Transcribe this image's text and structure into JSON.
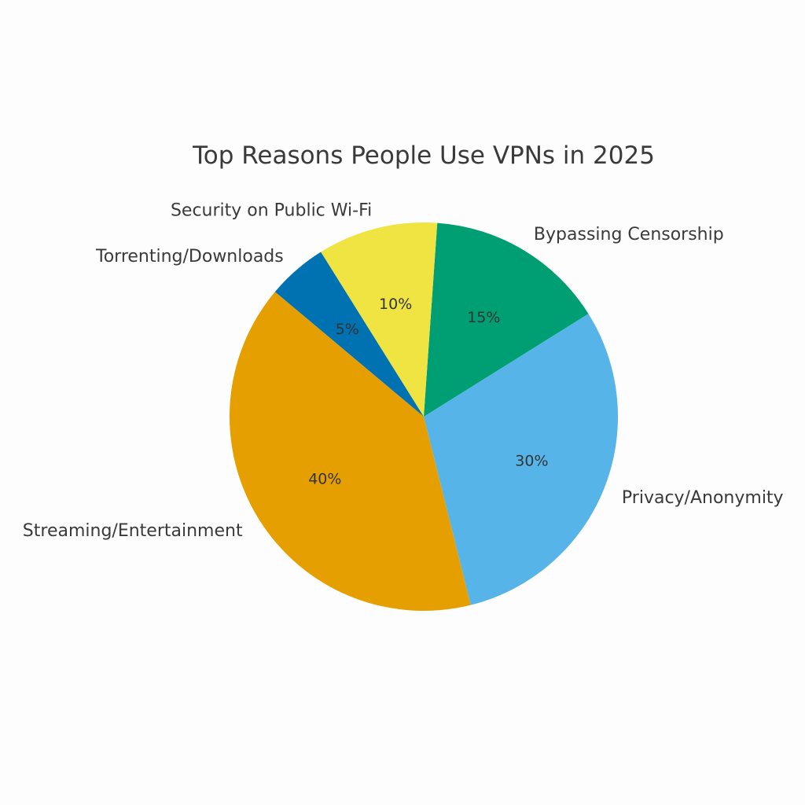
{
  "chart_data": {
    "type": "pie",
    "title": "Top Reasons People Use VPNs in 2025",
    "categories": [
      "Privacy/Anonymity",
      "Bypassing Censorship",
      "Security on Public Wi-Fi",
      "Torrenting/Downloads",
      "Streaming/Entertainment"
    ],
    "values": [
      30,
      15,
      10,
      5,
      40
    ],
    "value_labels": [
      "30%",
      "15%",
      "10%",
      "5%",
      "40%"
    ],
    "colors": [
      "#56b4e9",
      "#009e73",
      "#f0e442",
      "#0072b2",
      "#e69f00"
    ],
    "start_angle_deg": -76,
    "direction": "counterclockwise",
    "legend": "none",
    "xlabel": "",
    "ylabel": ""
  }
}
